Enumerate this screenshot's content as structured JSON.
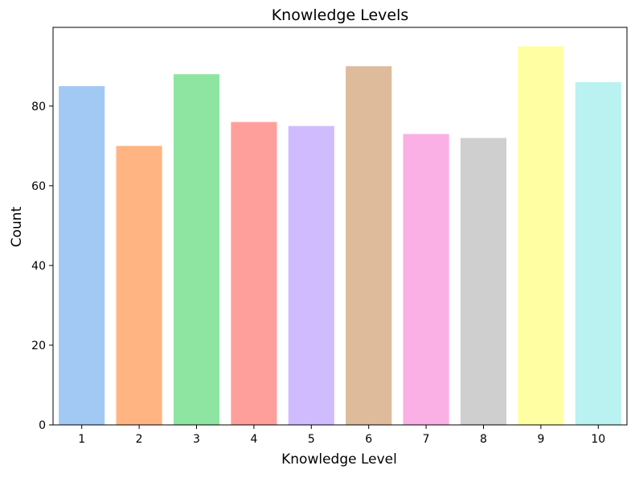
{
  "chart_data": {
    "type": "bar",
    "title": "Knowledge Levels",
    "xlabel": "Knowledge Level",
    "ylabel": "Count",
    "categories": [
      "1",
      "2",
      "3",
      "4",
      "5",
      "6",
      "7",
      "8",
      "9",
      "10"
    ],
    "values": [
      85,
      70,
      88,
      76,
      75,
      90,
      73,
      72,
      95,
      86
    ],
    "ylim": [
      0,
      99.75
    ],
    "yticks": [
      "0",
      "20",
      "40",
      "60",
      "80"
    ],
    "colors": [
      "#a1c9f4",
      "#ffb482",
      "#8de5a1",
      "#ff9f9b",
      "#d0bbff",
      "#debb9b",
      "#fab0e4",
      "#cfcfcf",
      "#fffea3",
      "#b9f2f0"
    ],
    "grid": false,
    "legend": "none"
  }
}
